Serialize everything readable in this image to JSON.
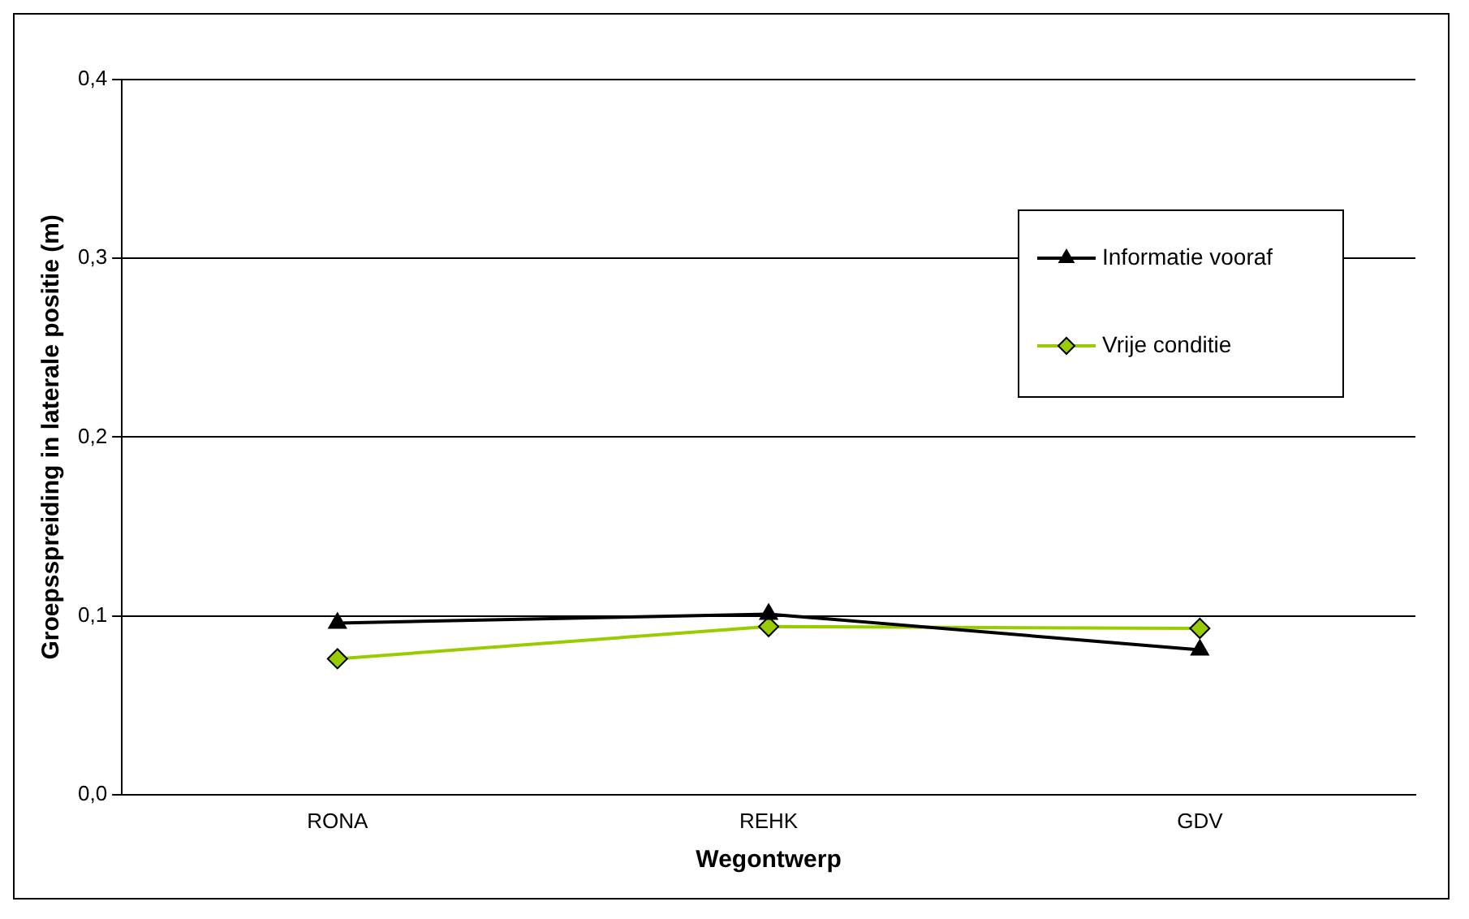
{
  "chart_data": {
    "type": "line",
    "xlabel": "Wegontwerp",
    "ylabel": "Groepsspreiding in laterale positie (m)",
    "categories": [
      "RONA",
      "REHK",
      "GDV"
    ],
    "series": [
      {
        "name": "Informatie vooraf",
        "color": "#000000",
        "marker": "triangle",
        "values": [
          0.096,
          0.101,
          0.081
        ]
      },
      {
        "name": "Vrije conditie",
        "color": "#99cc00",
        "marker": "diamond",
        "values": [
          0.076,
          0.094,
          0.093
        ]
      }
    ],
    "ylim": [
      0,
      0.4
    ],
    "yticks": [
      {
        "value": 0,
        "label": "0,0"
      },
      {
        "value": 0.1,
        "label": "0,1"
      },
      {
        "value": 0.2,
        "label": "0,2"
      },
      {
        "value": 0.3,
        "label": "0,3"
      },
      {
        "value": 0.4,
        "label": "0,4"
      }
    ],
    "grid": "y",
    "legend": "top right",
    "line_style": "solid"
  }
}
